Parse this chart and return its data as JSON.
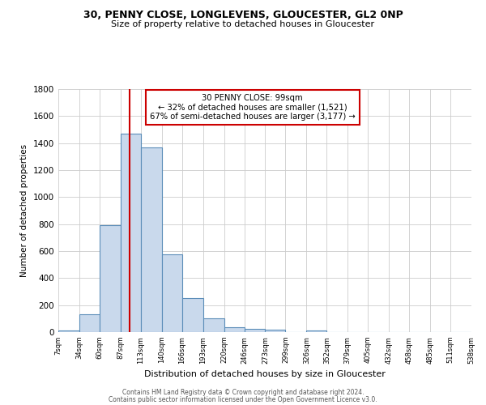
{
  "title1": "30, PENNY CLOSE, LONGLEVENS, GLOUCESTER, GL2 0NP",
  "title2": "Size of property relative to detached houses in Gloucester",
  "xlabel": "Distribution of detached houses by size in Gloucester",
  "ylabel": "Number of detached properties",
  "bin_edges": [
    7,
    34,
    60,
    87,
    113,
    140,
    166,
    193,
    220,
    246,
    273,
    299,
    326,
    352,
    379,
    405,
    432,
    458,
    485,
    511,
    538
  ],
  "bin_counts": [
    15,
    130,
    790,
    1470,
    1370,
    575,
    250,
    105,
    35,
    25,
    20,
    0,
    15,
    0,
    0,
    0,
    0,
    0,
    0,
    0
  ],
  "bar_facecolor": "#c9d9ec",
  "bar_edgecolor": "#5b8db8",
  "vline_x": 99,
  "vline_color": "#cc0000",
  "annotation_title": "30 PENNY CLOSE: 99sqm",
  "annotation_line1": "← 32% of detached houses are smaller (1,521)",
  "annotation_line2": "67% of semi-detached houses are larger (3,177) →",
  "annotation_box_edgecolor": "#cc0000",
  "annotation_box_facecolor": "#ffffff",
  "ylim": [
    0,
    1800
  ],
  "yticks": [
    0,
    200,
    400,
    600,
    800,
    1000,
    1200,
    1400,
    1600,
    1800
  ],
  "tick_labels": [
    "7sqm",
    "34sqm",
    "60sqm",
    "87sqm",
    "113sqm",
    "140sqm",
    "166sqm",
    "193sqm",
    "220sqm",
    "246sqm",
    "273sqm",
    "299sqm",
    "326sqm",
    "352sqm",
    "379sqm",
    "405sqm",
    "432sqm",
    "458sqm",
    "485sqm",
    "511sqm",
    "538sqm"
  ],
  "footnote1": "Contains HM Land Registry data © Crown copyright and database right 2024.",
  "footnote2": "Contains public sector information licensed under the Open Government Licence v3.0.",
  "bg_color": "#ffffff",
  "grid_color": "#cccccc"
}
